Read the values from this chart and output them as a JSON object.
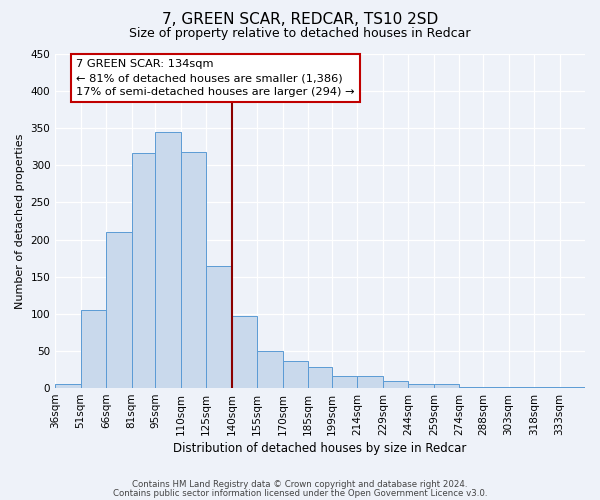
{
  "title": "7, GREEN SCAR, REDCAR, TS10 2SD",
  "subtitle": "Size of property relative to detached houses in Redcar",
  "xlabel": "Distribution of detached houses by size in Redcar",
  "ylabel": "Number of detached properties",
  "bar_color": "#c9d9ec",
  "bar_edge_color": "#5b9bd5",
  "property_size_line": 140,
  "vline_color": "#8b0000",
  "categories": [
    "36sqm",
    "51sqm",
    "66sqm",
    "81sqm",
    "95sqm",
    "110sqm",
    "125sqm",
    "140sqm",
    "155sqm",
    "170sqm",
    "185sqm",
    "199sqm",
    "214sqm",
    "229sqm",
    "244sqm",
    "259sqm",
    "274sqm",
    "288sqm",
    "303sqm",
    "318sqm",
    "333sqm"
  ],
  "bin_edges": [
    36,
    51,
    66,
    81,
    95,
    110,
    125,
    140,
    155,
    170,
    185,
    199,
    214,
    229,
    244,
    259,
    274,
    288,
    303,
    318,
    333,
    348
  ],
  "values": [
    6,
    105,
    210,
    316,
    345,
    318,
    165,
    97,
    50,
    36,
    28,
    16,
    16,
    9,
    5,
    5,
    1,
    1,
    1,
    1,
    1
  ],
  "ylim": [
    0,
    450
  ],
  "yticks": [
    0,
    50,
    100,
    150,
    200,
    250,
    300,
    350,
    400,
    450
  ],
  "annotation_title": "7 GREEN SCAR: 134sqm",
  "annotation_line1": "← 81% of detached houses are smaller (1,386)",
  "annotation_line2": "17% of semi-detached houses are larger (294) →",
  "footer1": "Contains HM Land Registry data © Crown copyright and database right 2024.",
  "footer2": "Contains public sector information licensed under the Open Government Licence v3.0.",
  "bg_color": "#eef2f9",
  "grid_color": "#ffffff",
  "annotation_box_color": "#ffffff",
  "annotation_box_edge": "#c00000",
  "title_fontsize": 11,
  "subtitle_fontsize": 9,
  "ylabel_fontsize": 8,
  "xlabel_fontsize": 8.5,
  "tick_fontsize": 7.5,
  "footer_fontsize": 6.2
}
